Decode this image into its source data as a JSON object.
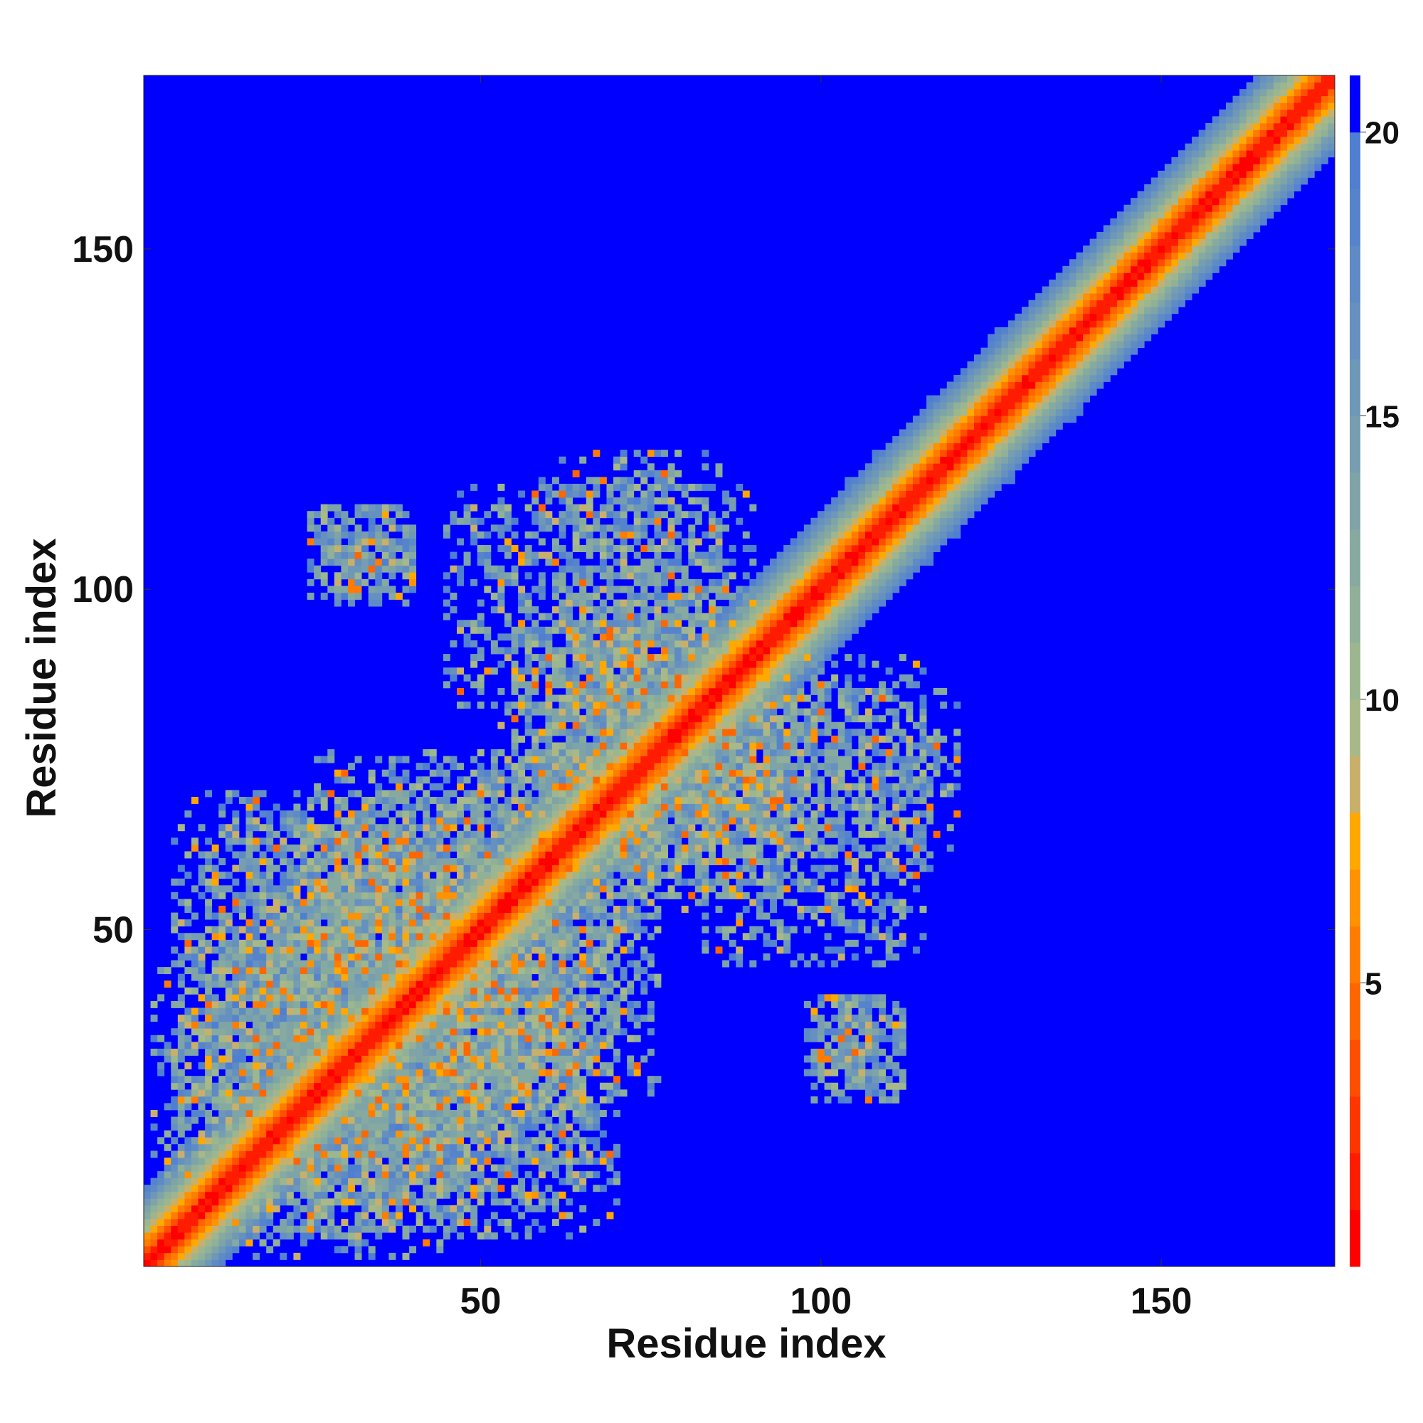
{
  "chart_data": {
    "type": "heatmap",
    "title": "",
    "xlabel": "Residue index",
    "ylabel": "Residue index",
    "n_residues": 175,
    "xlim": [
      1,
      175
    ],
    "ylim": [
      1,
      175
    ],
    "x_ticks": [
      50,
      100,
      150
    ],
    "y_ticks": [
      50,
      100,
      150
    ],
    "x_tick_labels": [
      "50",
      "100",
      "150"
    ],
    "y_tick_labels": [
      "50",
      "100",
      "150"
    ],
    "grid": false,
    "colorbar": {
      "placement": "right",
      "ticks": [
        5,
        10,
        15,
        20
      ],
      "tick_labels": [
        "5",
        "10",
        "15",
        "20"
      ],
      "range": [
        0,
        21
      ],
      "levels": [
        {
          "max": 1.0,
          "color": "#ff0000"
        },
        {
          "max": 2.0,
          "color": "#ff1c00"
        },
        {
          "max": 3.0,
          "color": "#ff3600"
        },
        {
          "max": 4.0,
          "color": "#ff4e00"
        },
        {
          "max": 5.0,
          "color": "#ff6600"
        },
        {
          "max": 6.0,
          "color": "#ff7c00"
        },
        {
          "max": 7.0,
          "color": "#ff9200"
        },
        {
          "max": 8.0,
          "color": "#ffa800"
        },
        {
          "max": 9.0,
          "color": "#c9b06a"
        },
        {
          "max": 10.0,
          "color": "#a8b888"
        },
        {
          "max": 11.0,
          "color": "#9cb690"
        },
        {
          "max": 12.0,
          "color": "#90b098"
        },
        {
          "max": 13.0,
          "color": "#86aaa0"
        },
        {
          "max": 14.0,
          "color": "#7ea4a8"
        },
        {
          "max": 15.0,
          "color": "#769eb0"
        },
        {
          "max": 16.0,
          "color": "#6e98b8"
        },
        {
          "max": 17.0,
          "color": "#6690c0"
        },
        {
          "max": 18.0,
          "color": "#5e8ac6"
        },
        {
          "max": 19.0,
          "color": "#5684cc"
        },
        {
          "max": 20.0,
          "color": "#4f7fd0"
        },
        {
          "max": 21.0,
          "color": "#0000ff"
        }
      ],
      "out_of_range_color": "#0000ff"
    },
    "description_of_values": "Symmetric residue-residue distance map; near-diagonal values 0-8 (red/orange), band 9-20 (green/grey-blue), distant pairs above 20 (blue).",
    "contact_regions": [
      {
        "x_range": [
          2,
          70
        ],
        "y_range": [
          5,
          48
        ],
        "density": 0.72
      },
      {
        "x_range": [
          10,
          60
        ],
        "y_range": [
          20,
          65
        ],
        "density": 0.55
      },
      {
        "x_range": [
          30,
          76
        ],
        "y_range": [
          25,
          75
        ],
        "density": 0.5
      },
      {
        "x_range": [
          55,
          100
        ],
        "y_range": [
          55,
          95
        ],
        "density": 0.55
      },
      {
        "x_range": [
          60,
          120
        ],
        "y_range": [
          60,
          90
        ],
        "density": 0.5
      },
      {
        "x_range": [
          45,
          85
        ],
        "y_range": [
          80,
          118
        ],
        "density": 0.5
      },
      {
        "x_range": [
          25,
          40
        ],
        "y_range": [
          98,
          112
        ],
        "density": 0.55
      },
      {
        "x_range": [
          98,
          112
        ],
        "y_range": [
          25,
          40
        ],
        "density": 0.55
      },
      {
        "x_range": [
          40,
          70
        ],
        "y_range": [
          15,
          45
        ],
        "density": 0.35
      }
    ],
    "diagonal_band": {
      "core_width": 3,
      "band_width": 12
    }
  }
}
